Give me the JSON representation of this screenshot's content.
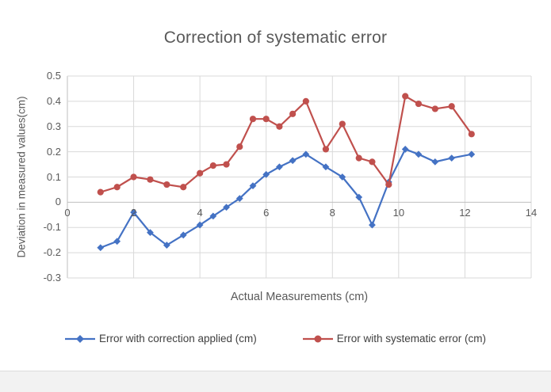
{
  "chart_data": {
    "type": "line",
    "title": "Correction of systematic error",
    "xlabel": "Actual Measurements (cm)",
    "ylabel": "Deviation in measured values(cm)",
    "xlim": [
      0,
      14
    ],
    "ylim": [
      -0.3,
      0.5
    ],
    "x_ticks": [
      0,
      2,
      4,
      6,
      8,
      10,
      12,
      14
    ],
    "x_tick_labels": [
      "0",
      "2",
      "4",
      "6",
      "8",
      "10",
      "12",
      "14"
    ],
    "y_ticks": [
      -0.3,
      -0.2,
      -0.1,
      0,
      0.1,
      0.2,
      0.3,
      0.4,
      0.5
    ],
    "y_tick_labels": [
      "-0.3",
      "-0.2",
      "-0.1",
      "0",
      "0.1",
      "0.2",
      "0.3",
      "0.4",
      "0.5"
    ],
    "grid": true,
    "legend_position": "bottom",
    "x": [
      1,
      1.5,
      2,
      2.5,
      3,
      3.5,
      4,
      4.4,
      4.8,
      5.2,
      5.6,
      6,
      6.4,
      6.8,
      7.2,
      7.8,
      8.3,
      8.8,
      9.2,
      9.7,
      10.2,
      10.6,
      11.1,
      11.6,
      12.2
    ],
    "series": [
      {
        "name": "Error with correction applied (cm)",
        "color": "#4472c4",
        "marker": "diamond",
        "values": [
          -0.18,
          -0.155,
          -0.04,
          -0.12,
          -0.17,
          -0.13,
          -0.09,
          -0.055,
          -0.02,
          0.015,
          0.065,
          0.11,
          0.14,
          0.165,
          0.19,
          0.14,
          0.1,
          0.02,
          -0.09,
          0.08,
          0.21,
          0.19,
          0.16,
          0.175,
          0.19
        ]
      },
      {
        "name": "Error with systematic error (cm)",
        "color": "#c0504d",
        "marker": "circle",
        "values": [
          0.04,
          0.06,
          0.1,
          0.09,
          0.07,
          0.06,
          0.115,
          0.145,
          0.15,
          0.22,
          0.33,
          0.33,
          0.3,
          0.35,
          0.4,
          0.21,
          0.31,
          0.175,
          0.16,
          0.07,
          0.42,
          0.39,
          0.37,
          0.38,
          0.27
        ]
      }
    ],
    "colors": {
      "grid": "#d9d9d9",
      "axis": "#bfbfbf",
      "text": "#595959"
    }
  }
}
